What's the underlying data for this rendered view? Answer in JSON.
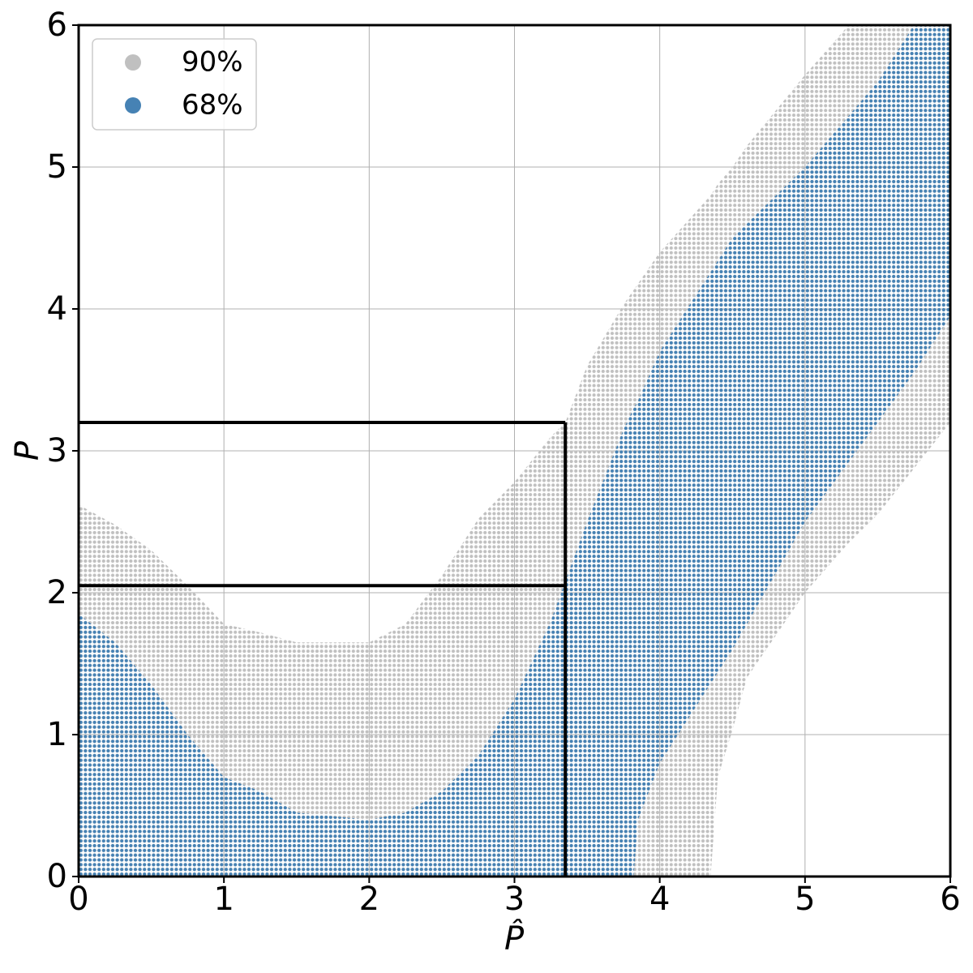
{
  "chart_data": {
    "type": "band",
    "xlabel": "P̂",
    "ylabel": "P",
    "xlim": [
      0,
      6
    ],
    "ylim": [
      0,
      6
    ],
    "xticks": [
      0,
      1,
      2,
      3,
      4,
      5,
      6
    ],
    "yticks": [
      0,
      1,
      2,
      3,
      4,
      5,
      6
    ],
    "grid": true,
    "legend": "upper left",
    "series": [
      {
        "name": "90%",
        "color": "#c0c0c0",
        "x": [
          0,
          0.25,
          0.5,
          0.75,
          1.0,
          1.25,
          1.5,
          2.0,
          2.25,
          2.5,
          2.75,
          3.0,
          3.25,
          3.35,
          3.5,
          3.75,
          4.0,
          4.35,
          4.4,
          4.5,
          4.6,
          5.0,
          5.3,
          5.5,
          6.0
        ],
        "lower": [
          0,
          0,
          0,
          0,
          0,
          0,
          0,
          0,
          0,
          0,
          0,
          0,
          0,
          0,
          0,
          0,
          0,
          0,
          0.7,
          1.03,
          1.4,
          2.0,
          2.35,
          2.55,
          3.2
        ],
        "upper": [
          2.62,
          2.48,
          2.3,
          2.05,
          1.78,
          1.72,
          1.65,
          1.65,
          1.78,
          2.12,
          2.52,
          2.78,
          3.1,
          3.2,
          3.6,
          4.03,
          4.4,
          4.8,
          4.88,
          5.0,
          5.15,
          5.65,
          6,
          6,
          6
        ]
      },
      {
        "name": "68%",
        "color": "#4682b4",
        "x": [
          0,
          0.25,
          0.5,
          0.75,
          1.0,
          1.25,
          1.5,
          2.0,
          2.25,
          2.5,
          2.75,
          3.0,
          3.25,
          3.5,
          3.75,
          3.82,
          3.85,
          4.0,
          4.5,
          5.0,
          5.5,
          5.75,
          6.0
        ],
        "lower": [
          0,
          0,
          0,
          0,
          0,
          0,
          0,
          0,
          0,
          0,
          0,
          0,
          0,
          0,
          0,
          0,
          0.4,
          0.8,
          1.6,
          2.5,
          3.2,
          3.55,
          3.95
        ],
        "upper": [
          1.85,
          1.65,
          1.35,
          1.0,
          0.7,
          0.6,
          0.45,
          0.4,
          0.45,
          0.6,
          0.85,
          1.25,
          1.8,
          2.5,
          3.15,
          3.3,
          3.35,
          3.7,
          4.5,
          5.0,
          5.6,
          6,
          6
        ]
      }
    ],
    "annotation_lines": {
      "x": 3.35,
      "y": [
        3.2,
        2.05
      ]
    }
  }
}
